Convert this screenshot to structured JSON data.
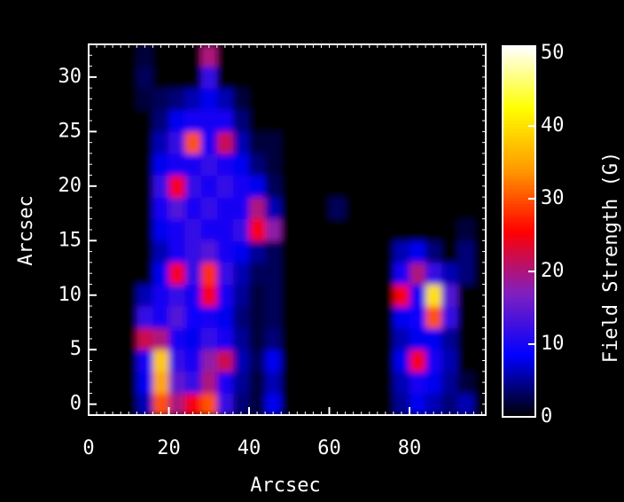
{
  "chart_data": {
    "type": "heatmap",
    "xlabel": "Arcsec",
    "ylabel": "Arcsec",
    "colorbar_label": "Field Strength (G)",
    "x": [
      2,
      6,
      10,
      14,
      18,
      22,
      26,
      30,
      34,
      38,
      42,
      46,
      50,
      54,
      58,
      62,
      66,
      70,
      74,
      78,
      82,
      86,
      90,
      94
    ],
    "y": [
      0,
      2,
      4,
      6,
      8,
      10,
      12,
      14,
      16,
      18,
      20,
      22,
      24,
      26,
      28,
      30,
      32
    ],
    "z": [
      [
        0,
        0,
        0,
        6,
        30,
        20,
        25,
        30,
        12,
        4,
        2,
        8,
        0,
        0,
        0,
        0,
        0,
        0,
        0,
        5,
        8,
        6,
        4,
        6
      ],
      [
        0,
        0,
        0,
        8,
        35,
        15,
        12,
        20,
        10,
        5,
        2,
        6,
        0,
        0,
        0,
        0,
        0,
        0,
        0,
        6,
        10,
        8,
        5,
        2
      ],
      [
        0,
        0,
        0,
        10,
        38,
        12,
        10,
        18,
        22,
        6,
        3,
        8,
        0,
        0,
        0,
        0,
        0,
        0,
        0,
        8,
        25,
        10,
        6,
        0
      ],
      [
        0,
        0,
        0,
        22,
        20,
        10,
        8,
        12,
        10,
        5,
        2,
        4,
        0,
        0,
        0,
        0,
        0,
        0,
        0,
        6,
        8,
        8,
        5,
        0
      ],
      [
        0,
        0,
        0,
        12,
        10,
        14,
        9,
        10,
        8,
        4,
        2,
        3,
        0,
        0,
        0,
        0,
        0,
        0,
        0,
        8,
        9,
        30,
        12,
        0
      ],
      [
        0,
        0,
        0,
        6,
        10,
        12,
        10,
        25,
        10,
        5,
        2,
        3,
        0,
        0,
        0,
        0,
        0,
        0,
        0,
        25,
        10,
        40,
        14,
        0
      ],
      [
        0,
        0,
        0,
        0,
        8,
        25,
        12,
        28,
        12,
        6,
        3,
        3,
        0,
        0,
        0,
        0,
        0,
        0,
        0,
        10,
        20,
        12,
        6,
        4
      ],
      [
        0,
        0,
        0,
        0,
        6,
        10,
        12,
        14,
        10,
        8,
        5,
        3,
        0,
        0,
        0,
        0,
        0,
        0,
        0,
        6,
        8,
        4,
        0,
        4
      ],
      [
        0,
        0,
        0,
        0,
        8,
        10,
        12,
        10,
        10,
        12,
        25,
        18,
        0,
        0,
        0,
        0,
        0,
        0,
        0,
        0,
        0,
        0,
        0,
        2
      ],
      [
        0,
        0,
        0,
        0,
        10,
        14,
        10,
        12,
        10,
        10,
        20,
        6,
        0,
        0,
        0,
        3,
        0,
        0,
        0,
        0,
        0,
        0,
        0,
        0
      ],
      [
        0,
        0,
        0,
        0,
        12,
        25,
        12,
        10,
        12,
        10,
        8,
        3,
        0,
        0,
        0,
        0,
        0,
        0,
        0,
        0,
        0,
        0,
        0,
        0
      ],
      [
        0,
        0,
        0,
        0,
        8,
        10,
        10,
        12,
        10,
        8,
        4,
        2,
        0,
        0,
        0,
        0,
        0,
        0,
        0,
        0,
        0,
        0,
        0,
        0
      ],
      [
        0,
        0,
        0,
        0,
        6,
        12,
        30,
        10,
        22,
        6,
        2,
        2,
        0,
        0,
        0,
        0,
        0,
        0,
        0,
        0,
        0,
        0,
        0,
        0
      ],
      [
        0,
        0,
        0,
        0,
        4,
        8,
        10,
        10,
        10,
        4,
        0,
        0,
        0,
        0,
        0,
        0,
        0,
        0,
        0,
        0,
        0,
        0,
        0,
        0
      ],
      [
        0,
        0,
        0,
        2,
        3,
        4,
        6,
        8,
        6,
        2,
        0,
        0,
        0,
        0,
        0,
        0,
        0,
        0,
        0,
        0,
        0,
        0,
        0,
        0
      ],
      [
        0,
        0,
        0,
        3,
        0,
        0,
        0,
        12,
        0,
        0,
        0,
        0,
        0,
        0,
        0,
        0,
        0,
        0,
        0,
        0,
        0,
        0,
        0,
        0
      ],
      [
        0,
        0,
        0,
        2,
        0,
        0,
        0,
        20,
        0,
        0,
        0,
        0,
        0,
        0,
        0,
        0,
        0,
        0,
        0,
        0,
        0,
        0,
        0,
        0
      ]
    ],
    "xlim": [
      0,
      99
    ],
    "ylim": [
      -1,
      33
    ],
    "xticks": [
      0,
      20,
      40,
      60,
      80
    ],
    "yticks": [
      0,
      5,
      10,
      15,
      20,
      25,
      30
    ],
    "zlim": [
      0,
      51
    ],
    "zticks": [
      0,
      10,
      20,
      30,
      40,
      50
    ],
    "colorscale": [
      "#000000",
      "#0000ff",
      "#8020c0",
      "#ff0000",
      "#ff9900",
      "#ffff00",
      "#ffffff"
    ]
  }
}
